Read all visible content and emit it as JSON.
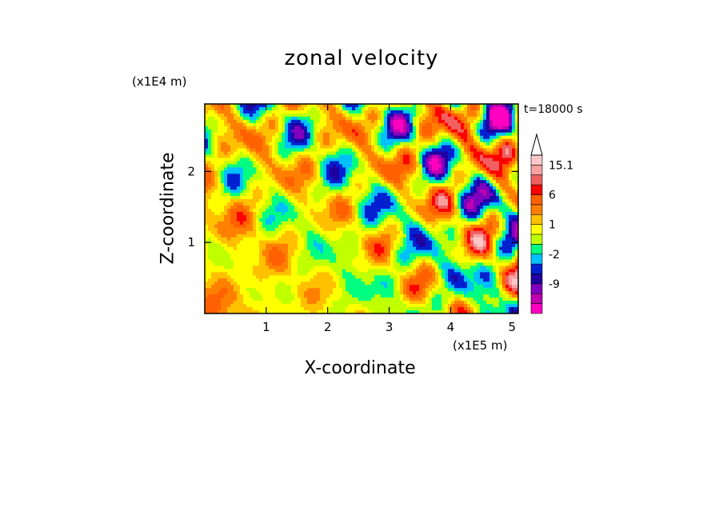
{
  "chart_data": {
    "type": "heatmap",
    "title": "zonal velocity",
    "xlabel": "X-coordinate",
    "ylabel": "Z-coordinate",
    "x_unit_label": "(x1E5 m)",
    "y_unit_label": "(x1E4 m)",
    "time_label": "t=18000 s",
    "xlim": [
      0,
      5.1
    ],
    "ylim": [
      0,
      2.95
    ],
    "x_ticks": [
      {
        "value": 1,
        "label": "1"
      },
      {
        "value": 2,
        "label": "2"
      },
      {
        "value": 3,
        "label": "3"
      },
      {
        "value": 4,
        "label": "4"
      },
      {
        "value": 5,
        "label": "5"
      }
    ],
    "y_ticks": [
      {
        "value": 1,
        "label": "1"
      },
      {
        "value": 2,
        "label": "2"
      }
    ],
    "colorbar": {
      "levels": [
        {
          "color": "#ff00c0"
        },
        {
          "color": "#c000b0"
        },
        {
          "color": "#8000c0"
        },
        {
          "color": "#2000a0"
        },
        {
          "color": "#0020d0"
        },
        {
          "color": "#00c0ff"
        },
        {
          "color": "#00ff80"
        },
        {
          "color": "#c0ff00"
        },
        {
          "color": "#ffff00"
        },
        {
          "color": "#ffc000"
        },
        {
          "color": "#ff8000"
        },
        {
          "color": "#ff6000"
        },
        {
          "color": "#ff0000"
        },
        {
          "color": "#f06060"
        },
        {
          "color": "#f8a0a0"
        },
        {
          "color": "#ffc8c8"
        }
      ],
      "labels": [
        {
          "text": "15.1",
          "level": 15
        },
        {
          "text": "6",
          "level": 12
        },
        {
          "text": "1",
          "level": 9
        },
        {
          "text": "-2",
          "level": 6
        },
        {
          "text": "-9",
          "level": 3
        }
      ],
      "overflow_arrow": true
    },
    "grid": false
  }
}
